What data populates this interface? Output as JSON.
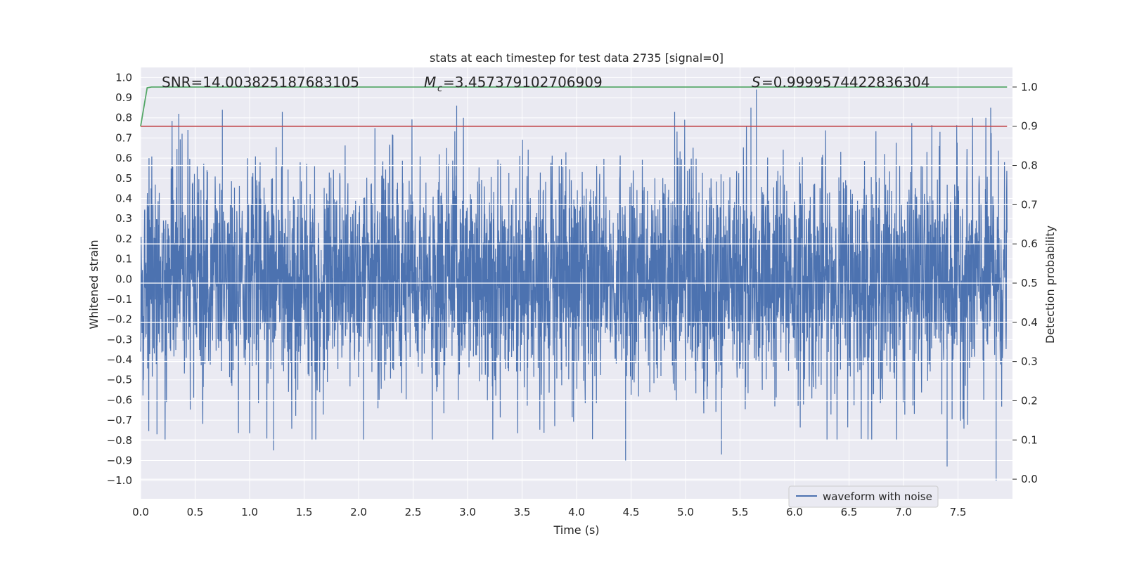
{
  "chart_data": {
    "type": "line",
    "title": "stats at each timestep for test data 2735 [signal=0]",
    "xlabel": "Time (s)",
    "ylabel": "Whitened strain",
    "y2label": "Detection probability",
    "xlim": [
      0.0,
      8.0
    ],
    "ylim": [
      -1.09,
      1.05
    ],
    "y2lim": [
      -0.05,
      1.05
    ],
    "xticks": [
      "0.0",
      "0.5",
      "1.0",
      "1.5",
      "2.0",
      "2.5",
      "3.0",
      "3.5",
      "4.0",
      "4.5",
      "5.0",
      "5.5",
      "6.0",
      "6.5",
      "7.0",
      "7.5"
    ],
    "yticks": [
      "1.0",
      "0.9",
      "0.8",
      "0.7",
      "0.6",
      "0.5",
      "0.4",
      "0.3",
      "0.2",
      "0.1",
      "0.0",
      "−0.1",
      "−0.2",
      "−0.3",
      "−0.4",
      "−0.5",
      "−0.6",
      "−0.7",
      "−0.8",
      "−0.9",
      "−1.0"
    ],
    "y2ticks": [
      "1.0",
      "0.9",
      "0.8",
      "0.7",
      "0.6",
      "0.5",
      "0.4",
      "0.3",
      "0.2",
      "0.1",
      "0.0"
    ],
    "grid": true,
    "legend": {
      "placement": "lower-right",
      "entries": [
        "waveform with noise"
      ]
    },
    "annotations": {
      "snr": "SNR=14.003825187683105",
      "mc_value": "=3.457379102706909",
      "s_value": "=0.9999574422836304"
    },
    "series": [
      {
        "name": "waveform with noise",
        "kind": "noise-waveform",
        "color": "#4c72b0",
        "x_range": [
          0.0,
          8.0
        ],
        "amplitude_envelope": [
          -0.45,
          0.45
        ],
        "peaks": [
          {
            "x": 0.35,
            "y": 0.82
          },
          {
            "x": 0.75,
            "y": 0.84
          },
          {
            "x": 1.3,
            "y": 0.83
          },
          {
            "x": 2.9,
            "y": 0.86
          },
          {
            "x": 4.9,
            "y": 0.83
          },
          {
            "x": 5.6,
            "y": 0.85
          },
          {
            "x": 5.65,
            "y": 0.94
          },
          {
            "x": 7.8,
            "y": 0.85
          }
        ],
        "troughs": [
          {
            "x": 0.15,
            "y": -0.77
          },
          {
            "x": 1.22,
            "y": -0.85
          },
          {
            "x": 4.45,
            "y": -0.9
          },
          {
            "x": 5.33,
            "y": -0.87
          },
          {
            "x": 7.4,
            "y": -0.93
          },
          {
            "x": 7.85,
            "y": -1.0
          }
        ]
      },
      {
        "kind": "probability",
        "axis": "right",
        "color": "#55a868",
        "x": [
          0.0,
          0.06,
          0.1,
          7.95
        ],
        "y": [
          0.9,
          0.998,
          1.0,
          1.0
        ]
      },
      {
        "kind": "threshold",
        "axis": "right",
        "color": "#c44e52",
        "x": [
          0.0,
          7.95
        ],
        "y": [
          0.9,
          0.9
        ]
      }
    ],
    "colors": {
      "background": "#eaeaf2",
      "grid": "#ffffff",
      "waveform": "#4c72b0",
      "probability": "#55a868",
      "threshold": "#c44e52"
    }
  }
}
